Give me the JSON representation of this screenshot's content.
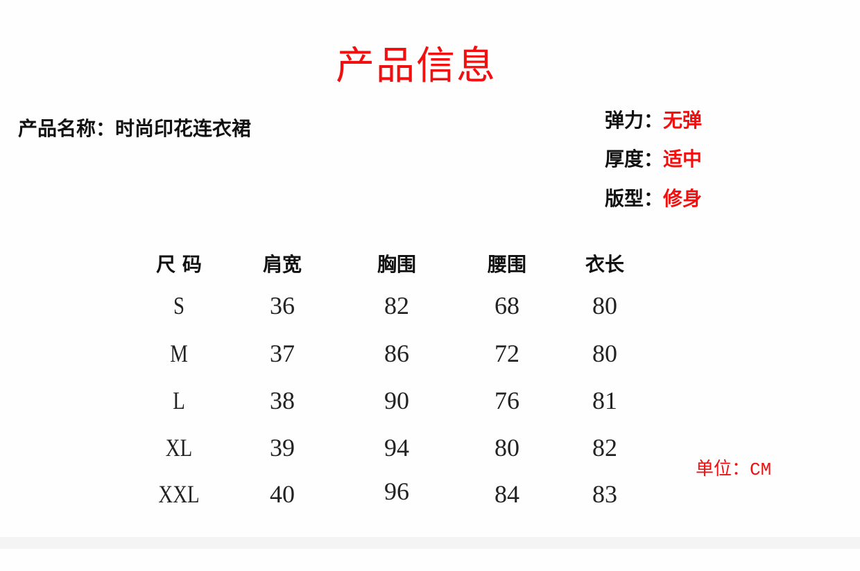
{
  "title": "产品信息",
  "product_name": "产品名称：时尚印花连衣裙",
  "attributes": [
    {
      "label": "弹力：",
      "value": "无弹"
    },
    {
      "label": "厚度：",
      "value": "适中"
    },
    {
      "label": "版型：",
      "value": "修身"
    }
  ],
  "table": {
    "headers": [
      "尺 码",
      "肩宽",
      "胸围",
      "腰围",
      "衣长"
    ],
    "rows": [
      [
        "S",
        "36",
        "82",
        "68",
        "80"
      ],
      [
        "M",
        "37",
        "86",
        "72",
        "80"
      ],
      [
        "L",
        "38",
        "90",
        "76",
        "81"
      ],
      [
        "XL",
        "39",
        "94",
        "80",
        "82"
      ],
      [
        "XXL",
        "40",
        "96",
        "84",
        "83"
      ]
    ]
  },
  "unit": "单位：CM",
  "colors": {
    "accent": "#f01010",
    "text": "#111111",
    "band": "#f4f4f4"
  }
}
